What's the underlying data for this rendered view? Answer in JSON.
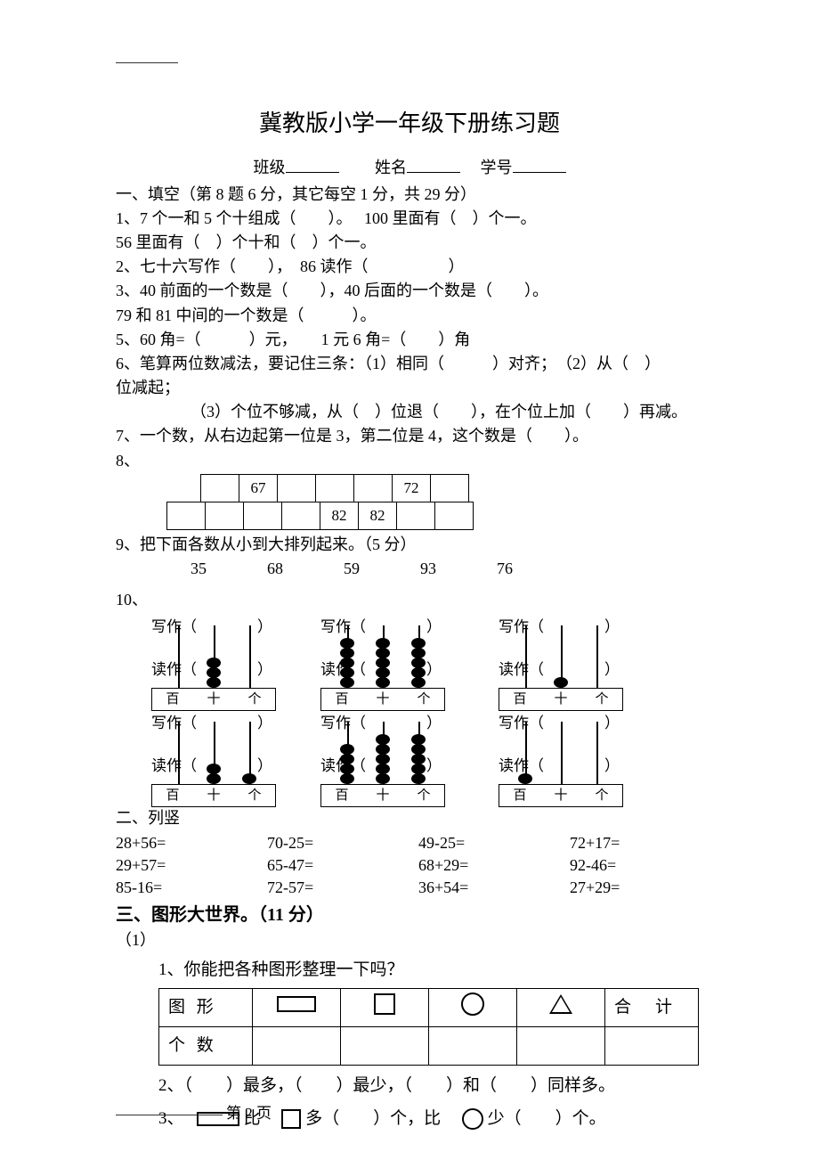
{
  "title": "冀教版小学一年级下册练习题",
  "form": {
    "class": "班级",
    "name": "姓名",
    "id": "学号"
  },
  "s1": {
    "head": "一、填空（第 8 题 6 分，其它每空 1 分，共 29 分）",
    "q1a": "1、7 个一和 5 个十组成（　　）。　 100 里面有（　）个一。",
    "q1b": "56 里面有（　）个十和（　）个一。",
    "q2": "2、七十六写作（　　），　86 读作（　　　　　）",
    "q3a": "3、40 前面的一个数是（　　），40 后面的一个数是（　　）。",
    "q3b": "79 和 81 中间的一个数是（　　　）。",
    "q5": "5、60 角=（　　　）元，　　1 元 6 角=（　　）角",
    "q6a": "6、笔算两位数减法，要记住三条：（1）相同（　　　）对齐；　（2）从（　）",
    "q6b": "位减起；",
    "q6c": "（3）个位不够减，从（　）位退（　　），在个位上加（　　）再减。",
    "q7": "7、一个数，从右边起第一位是 3，第二位是 4，这个数是（　　）。",
    "q8": "8、",
    "row_a": [
      "",
      "67",
      "",
      "",
      "",
      "72",
      ""
    ],
    "row_b": [
      "",
      "",
      "",
      "",
      "82",
      "82",
      "",
      ""
    ],
    "q9": "9、把下面各数从小到大排列起来。（5 分）",
    "q9nums": [
      "35",
      "68",
      "59",
      "93",
      "76"
    ],
    "q10": "10、",
    "aba_write": "写作（　　　　）",
    "aba_read": "读作（　　　　）",
    "places": [
      "百",
      "十",
      "个"
    ],
    "abacus": [
      {
        "beads": [
          0,
          3,
          0
        ]
      },
      {
        "beads": [
          5,
          5,
          5
        ]
      },
      {
        "beads": [
          0,
          1,
          0
        ]
      },
      {
        "beads": [
          0,
          2,
          1
        ]
      },
      {
        "beads": [
          4,
          5,
          5
        ]
      },
      {
        "beads": [
          1,
          0,
          0
        ]
      }
    ]
  },
  "s2": {
    "head": "二、列竖",
    "rows": [
      [
        "28+56=",
        "70-25=",
        "49-25=",
        "72+17="
      ],
      [
        "29+57=",
        "65-47=",
        "68+29=",
        "92-46="
      ],
      [
        "85-16=",
        "72-57=",
        "36+54=",
        "27+29="
      ]
    ]
  },
  "s3": {
    "head": "三、图形大世界。（11 分）",
    "sub": "（1）",
    "q1": "1、你能把各种图形整理一下吗？",
    "th": [
      "图 形",
      "",
      "",
      "",
      "",
      "合　计"
    ],
    "th2": "个 数",
    "q2": "2、（　　）最多，（　　）最少，（　　）和（　　）同样多。",
    "q3a": "3、",
    "q3b": "比",
    "q3c": "多（　　）个，比",
    "q3d": "少（　　）个。"
  },
  "footer": "第 2 页"
}
